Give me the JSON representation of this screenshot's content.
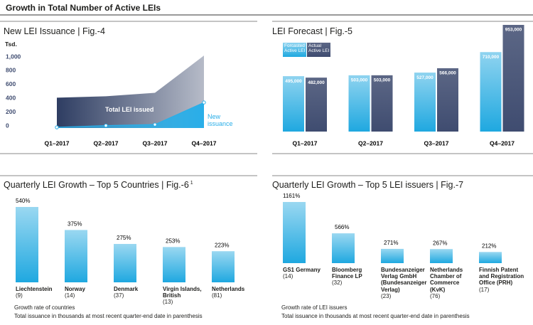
{
  "title": "Growth in Total Number of Active LEIs",
  "chart_data": [
    {
      "type": "area",
      "title": "New LEI Issuance | Fig.-4",
      "y_label": "Tsd.",
      "categories": [
        "Q1–2017",
        "Q2–2017",
        "Q3–2017",
        "Q4–2017"
      ],
      "series": [
        {
          "name": "Total LEI issued",
          "color": "#2e3d62",
          "values": [
            440,
            460,
            510,
            1050
          ]
        },
        {
          "name": "New issuance",
          "color": "#29aee8",
          "values": [
            10,
            35,
            50,
            370
          ]
        }
      ],
      "ylim": [
        0,
        1000
      ],
      "yticks": [
        0,
        200,
        400,
        600,
        800,
        {
          "value": 1000,
          "label": "1,000"
        }
      ]
    },
    {
      "type": "grouped-bar",
      "title": "LEI Forecast | Fig.-5",
      "categories": [
        "Q1–2017",
        "Q2–2017",
        "Q3–2017",
        "Q4–2017"
      ],
      "series": [
        {
          "name": "Forcasted Active LEI",
          "color": "#1fa8e0",
          "values": [
            495000,
            503000,
            527000,
            710000
          ],
          "value_labels": [
            "495,000",
            "503,000",
            "527,000",
            "710,000"
          ]
        },
        {
          "name": "Actual Active LEI",
          "color": "#3f4c70",
          "values": [
            482000,
            503000,
            566000,
            953000
          ],
          "value_labels": [
            "482,000",
            "503,000",
            "566,000",
            "953,000"
          ]
        }
      ]
    },
    {
      "type": "bar",
      "title": "Quarterly LEI Growth – Top 5 Countries | Fig.-6",
      "footnote_mark": "1",
      "categories": [
        "Liechtenstein",
        "Norway",
        "Denmark",
        "Virgin Islands, British",
        "Netherlands"
      ],
      "sublabels": [
        "(9)",
        "(14)",
        "(37)",
        "(13)",
        "(81)"
      ],
      "values": [
        540,
        375,
        275,
        253,
        223
      ],
      "value_labels": [
        "540%",
        "375%",
        "275%",
        "253%",
        "223%"
      ],
      "color": "#1fa8e0",
      "notes": [
        "Growth rate of countries",
        "Total issuance in thousands at most recent quarter-end date in parenthesis"
      ]
    },
    {
      "type": "bar",
      "title": "Quarterly LEI Growth – Top 5 LEI issuers | Fig.-7",
      "categories": [
        "GS1 Germany",
        "Bloomberg Finance LP",
        "Bundesanzeiger Verlag GmbH (Bundesanzeiger Verlag)",
        "Netherlands Chamber of Commerce (KvK)",
        "Finnish Patent and Registration Office (PRH)"
      ],
      "sublabels": [
        "(14)",
        "(32)",
        "(23)",
        "(76)",
        "(17)"
      ],
      "values": [
        1161,
        566,
        271,
        267,
        212
      ],
      "value_labels": [
        "1161%",
        "566%",
        "271%",
        "267%",
        "212%"
      ],
      "color": "#1fa8e0",
      "notes": [
        "Growth rate of LEI issuers",
        "Total issuance in thousands at most recent quarter-end date in parenthesis"
      ]
    }
  ]
}
